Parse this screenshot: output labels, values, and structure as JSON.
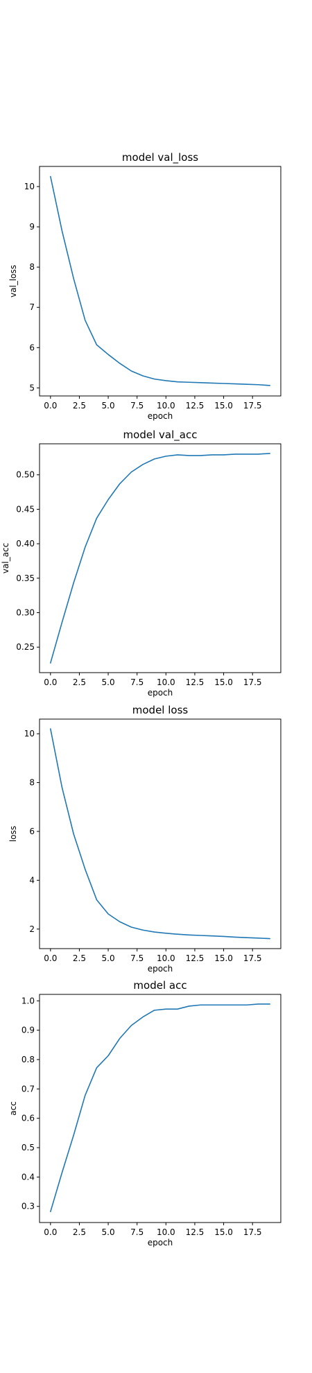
{
  "style": {
    "line_color": "#1f77b4",
    "frame_color": "#000000",
    "background": "#ffffff"
  },
  "chart_data": [
    {
      "type": "line",
      "title": "model val_loss",
      "xlabel": "epoch",
      "ylabel": "val_loss",
      "xlim": [
        -0.95,
        19.95
      ],
      "ylim": [
        4.8,
        10.5
      ],
      "xticks": [
        0.0,
        2.5,
        5.0,
        7.5,
        10.0,
        12.5,
        15.0,
        17.5
      ],
      "xtick_labels": [
        "0.0",
        "2.5",
        "5.0",
        "7.5",
        "10.0",
        "12.5",
        "15.0",
        "17.5"
      ],
      "yticks": [
        5,
        6,
        7,
        8,
        9,
        10
      ],
      "ytick_labels": [
        "5",
        "6",
        "7",
        "8",
        "9",
        "10"
      ],
      "grid": false,
      "series": [
        {
          "x": [
            0,
            1,
            2,
            3,
            4,
            5,
            6,
            7,
            8,
            9,
            10,
            11,
            12,
            13,
            14,
            15,
            16,
            17,
            18,
            19
          ],
          "values": [
            10.25,
            8.9,
            7.72,
            6.68,
            6.07,
            5.83,
            5.61,
            5.42,
            5.3,
            5.22,
            5.18,
            5.15,
            5.14,
            5.13,
            5.12,
            5.11,
            5.1,
            5.09,
            5.08,
            5.06
          ]
        }
      ]
    },
    {
      "type": "line",
      "title": "model val_acc",
      "xlabel": "epoch",
      "ylabel": "val_acc",
      "xlim": [
        -0.95,
        19.95
      ],
      "ylim": [
        0.213,
        0.545
      ],
      "xticks": [
        0.0,
        2.5,
        5.0,
        7.5,
        10.0,
        12.5,
        15.0,
        17.5
      ],
      "xtick_labels": [
        "0.0",
        "2.5",
        "5.0",
        "7.5",
        "10.0",
        "12.5",
        "15.0",
        "17.5"
      ],
      "yticks": [
        0.25,
        0.3,
        0.35,
        0.4,
        0.45,
        0.5
      ],
      "ytick_labels": [
        "0.25",
        "0.30",
        "0.35",
        "0.40",
        "0.45",
        "0.50"
      ],
      "grid": false,
      "series": [
        {
          "x": [
            0,
            1,
            2,
            3,
            4,
            5,
            6,
            7,
            8,
            9,
            10,
            11,
            12,
            13,
            14,
            15,
            16,
            17,
            18,
            19
          ],
          "values": [
            0.227,
            0.286,
            0.343,
            0.395,
            0.437,
            0.464,
            0.487,
            0.504,
            0.515,
            0.523,
            0.527,
            0.529,
            0.528,
            0.528,
            0.529,
            0.529,
            0.53,
            0.53,
            0.53,
            0.531
          ]
        }
      ]
    },
    {
      "type": "line",
      "title": "model loss",
      "xlabel": "epoch",
      "ylabel": "loss",
      "xlim": [
        -0.95,
        19.95
      ],
      "ylim": [
        1.2,
        10.6
      ],
      "xticks": [
        0.0,
        2.5,
        5.0,
        7.5,
        10.0,
        12.5,
        15.0,
        17.5
      ],
      "xtick_labels": [
        "0.0",
        "2.5",
        "5.0",
        "7.5",
        "10.0",
        "12.5",
        "15.0",
        "17.5"
      ],
      "yticks": [
        2,
        4,
        6,
        8,
        10
      ],
      "ytick_labels": [
        "2",
        "4",
        "6",
        "8",
        "10"
      ],
      "grid": false,
      "series": [
        {
          "x": [
            0,
            1,
            2,
            3,
            4,
            5,
            6,
            7,
            8,
            9,
            10,
            11,
            12,
            13,
            14,
            15,
            16,
            17,
            18,
            19
          ],
          "values": [
            10.2,
            7.8,
            5.9,
            4.45,
            3.2,
            2.62,
            2.3,
            2.08,
            1.96,
            1.88,
            1.83,
            1.79,
            1.76,
            1.74,
            1.72,
            1.7,
            1.67,
            1.65,
            1.63,
            1.61
          ]
        }
      ]
    },
    {
      "type": "line",
      "title": "model acc",
      "xlabel": "epoch",
      "ylabel": "acc",
      "xlim": [
        -0.95,
        19.95
      ],
      "ylim": [
        0.245,
        1.022
      ],
      "xticks": [
        0.0,
        2.5,
        5.0,
        7.5,
        10.0,
        12.5,
        15.0,
        17.5
      ],
      "xtick_labels": [
        "0.0",
        "2.5",
        "5.0",
        "7.5",
        "10.0",
        "12.5",
        "15.0",
        "17.5"
      ],
      "yticks": [
        0.3,
        0.4,
        0.5,
        0.6,
        0.7,
        0.8,
        0.9,
        1.0
      ],
      "ytick_labels": [
        "0.3",
        "0.4",
        "0.5",
        "0.6",
        "0.7",
        "0.8",
        "0.9",
        "1.0"
      ],
      "grid": false,
      "series": [
        {
          "x": [
            0,
            1,
            2,
            3,
            4,
            5,
            6,
            7,
            8,
            9,
            10,
            11,
            12,
            13,
            14,
            15,
            16,
            17,
            18,
            19
          ],
          "values": [
            0.282,
            0.415,
            0.542,
            0.678,
            0.772,
            0.813,
            0.872,
            0.916,
            0.945,
            0.968,
            0.972,
            0.972,
            0.982,
            0.986,
            0.986,
            0.986,
            0.986,
            0.986,
            0.989,
            0.989
          ]
        }
      ]
    }
  ]
}
